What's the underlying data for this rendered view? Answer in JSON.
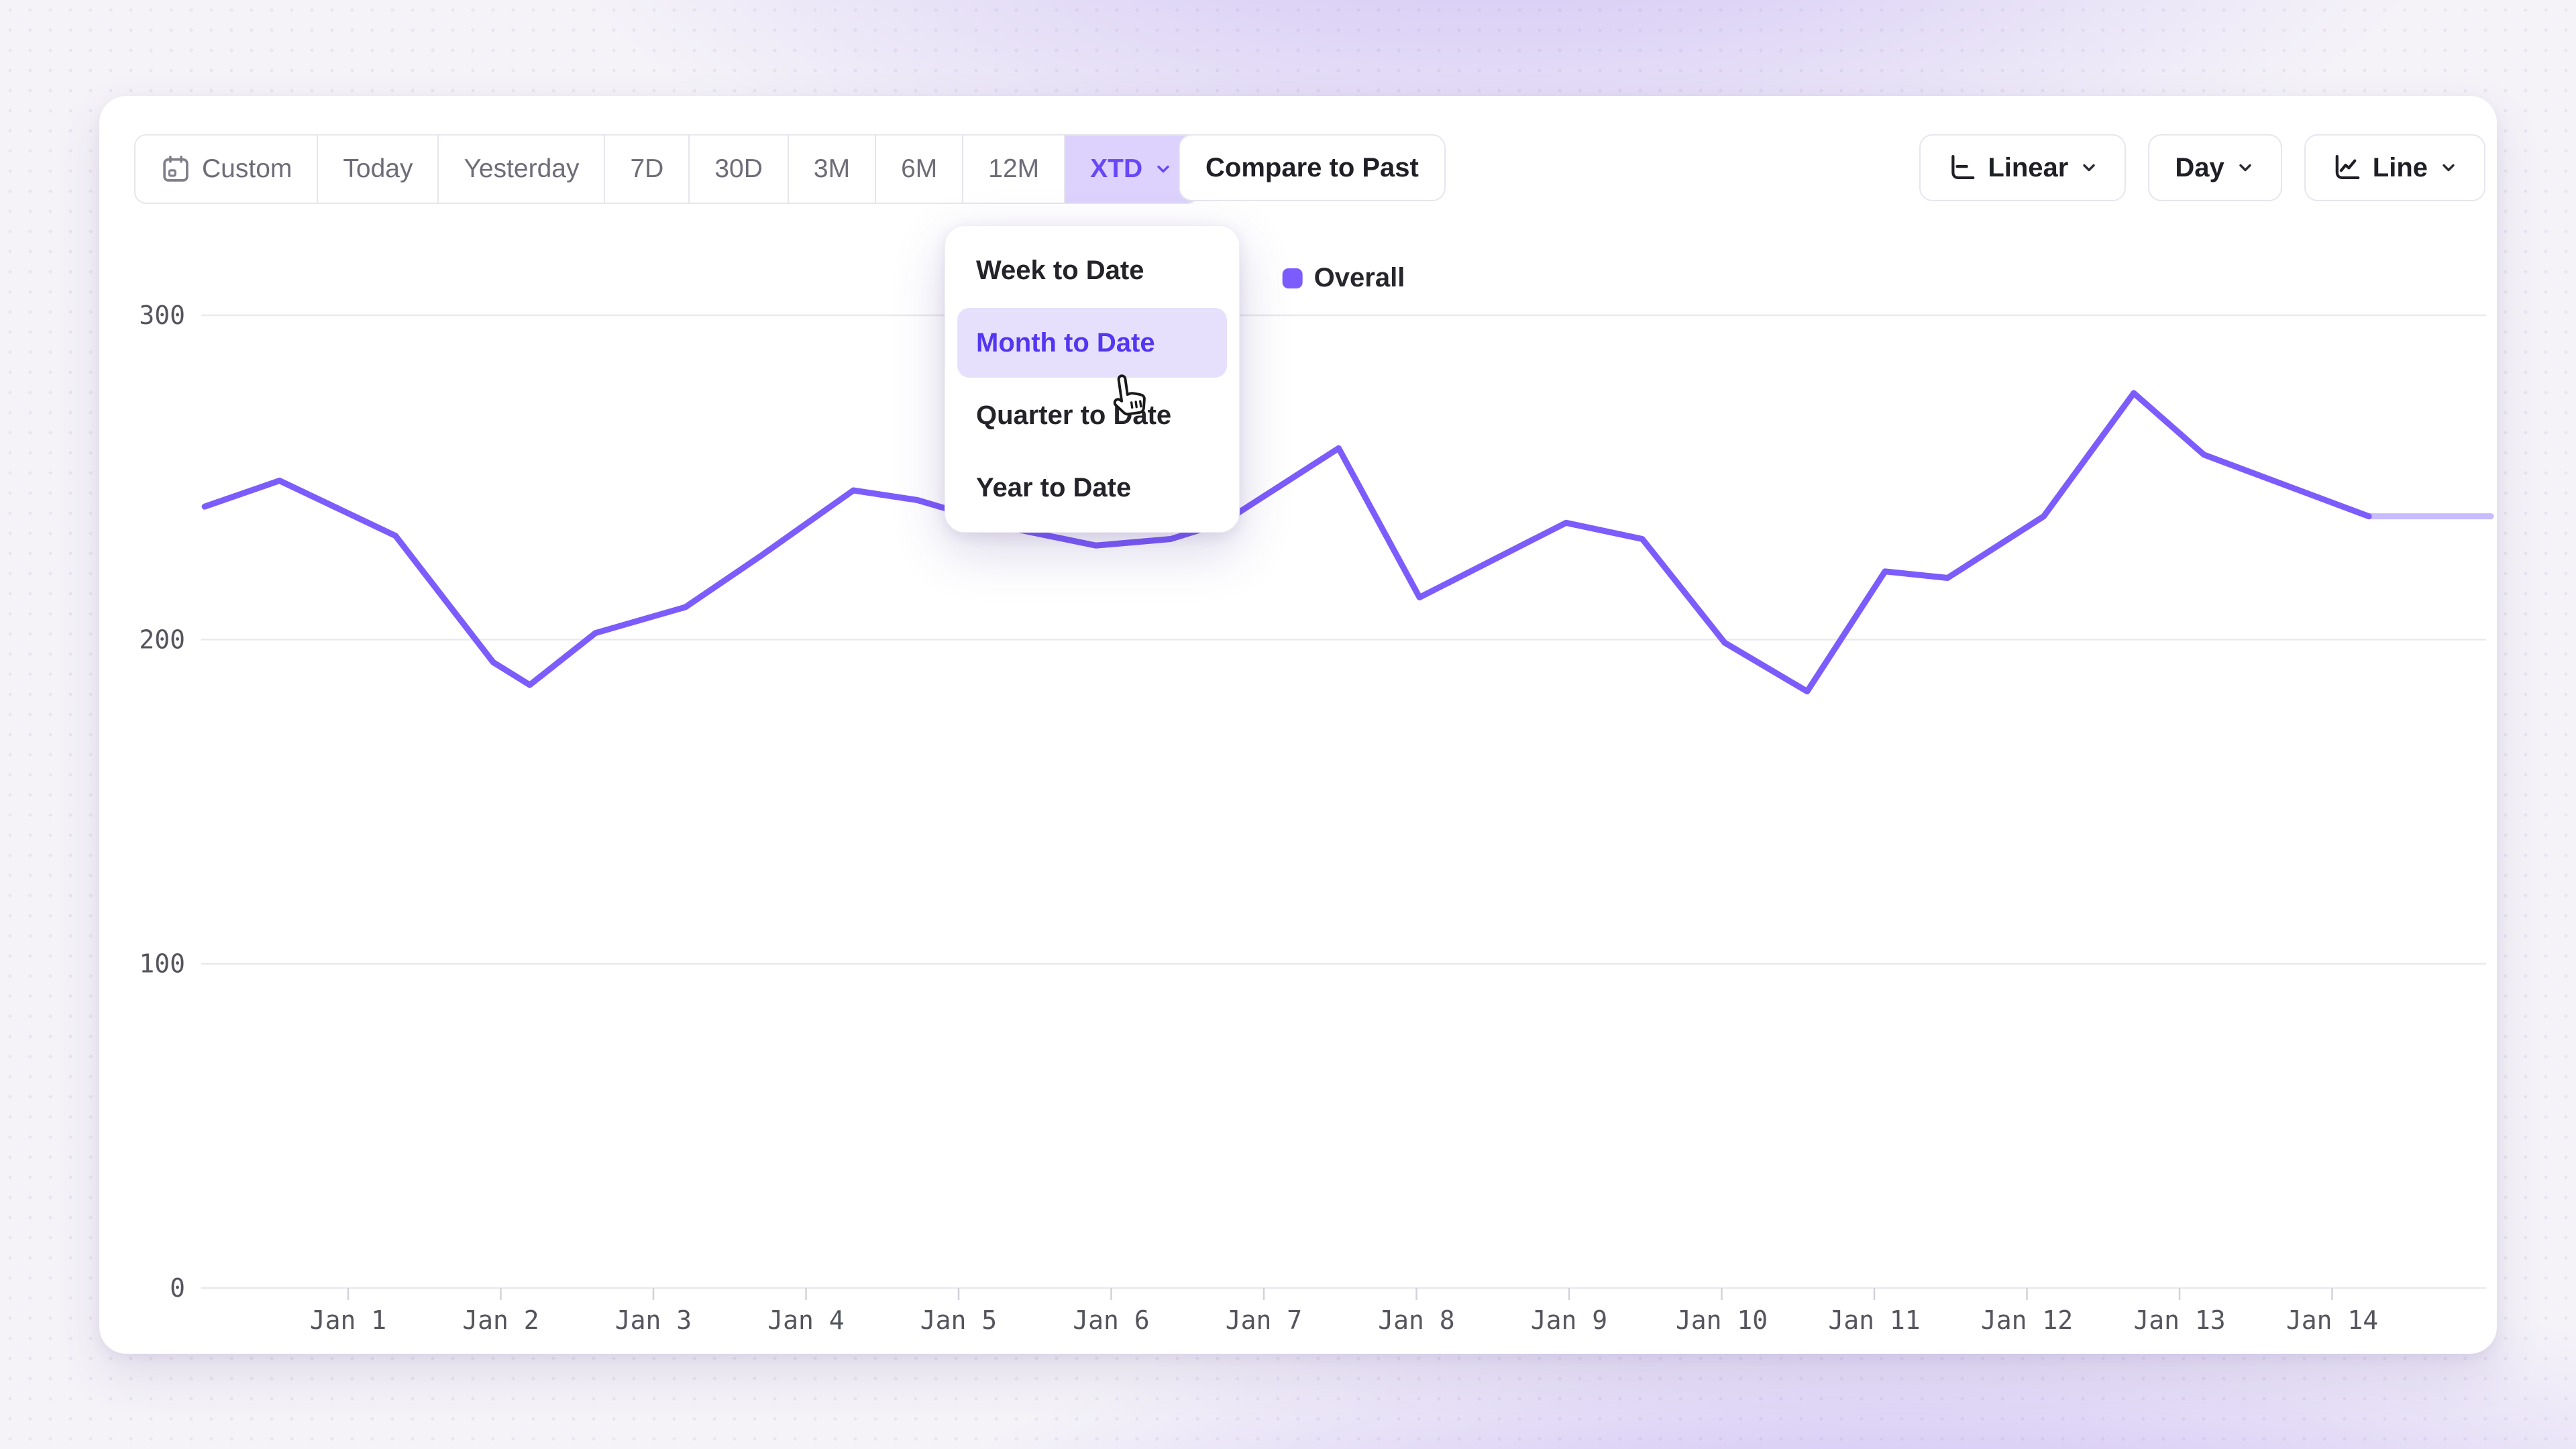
{
  "toolbar": {
    "date_ranges": [
      {
        "label": "Custom"
      },
      {
        "label": "Today"
      },
      {
        "label": "Yesterday"
      },
      {
        "label": "7D"
      },
      {
        "label": "30D"
      },
      {
        "label": "3M"
      },
      {
        "label": "6M"
      },
      {
        "label": "12M"
      },
      {
        "label": "XTD",
        "active": true
      }
    ],
    "compare_label": "Compare to Past",
    "controls": [
      {
        "label": "Linear"
      },
      {
        "label": "Day"
      },
      {
        "label": "Line"
      }
    ]
  },
  "dropdown": {
    "items": [
      {
        "label": "Week to Date",
        "highlighted": false
      },
      {
        "label": "Month to Date",
        "highlighted": true
      },
      {
        "label": "Quarter to Date",
        "highlighted": false
      },
      {
        "label": "Year to Date",
        "highlighted": false
      }
    ]
  },
  "legend": {
    "label": "Overall",
    "color": "#7c5cfc"
  },
  "colors": {
    "accent": "#6747f6",
    "accent_soft": "#dcd2fd",
    "line": "#7c5cfc",
    "grid": "#e9e8ee",
    "tick_text": "#55555e"
  },
  "chart_data": {
    "type": "line",
    "title": "",
    "xlabel": "",
    "ylabel": "",
    "x_tick_labels": [
      "Jan 1",
      "Jan 2",
      "Jan 3",
      "Jan 4",
      "Jan 5",
      "Jan 6",
      "Jan 7",
      "Jan 8",
      "Jan 9",
      "Jan 10",
      "Jan 11",
      "Jan 12",
      "Jan 13",
      "Jan 14"
    ],
    "y_ticks": [
      0,
      100,
      200,
      300
    ],
    "ylim": [
      0,
      310
    ],
    "grid": true,
    "legend_position": "top-center",
    "series": [
      {
        "name": "Overall",
        "color": "#7c5cfc",
        "points": [
          [
            0.06,
            241
          ],
          [
            0.55,
            249
          ],
          [
            1.31,
            232
          ],
          [
            1.95,
            193
          ],
          [
            2.19,
            186
          ],
          [
            2.62,
            202
          ],
          [
            3.21,
            210
          ],
          [
            3.71,
            226
          ],
          [
            4.31,
            246
          ],
          [
            4.73,
            243
          ],
          [
            5.38,
            234
          ],
          [
            5.9,
            229
          ],
          [
            6.39,
            231
          ],
          [
            6.73,
            236
          ],
          [
            7.49,
            259
          ],
          [
            8.02,
            213
          ],
          [
            8.98,
            236
          ],
          [
            9.48,
            231
          ],
          [
            10.02,
            199
          ],
          [
            10.56,
            184
          ],
          [
            11.07,
            221
          ],
          [
            11.48,
            219
          ],
          [
            12.11,
            238
          ],
          [
            12.7,
            276
          ],
          [
            13.16,
            257
          ],
          [
            14.24,
            238
          ],
          [
            15.04,
            238
          ]
        ],
        "faded_from_index": 25
      }
    ]
  }
}
